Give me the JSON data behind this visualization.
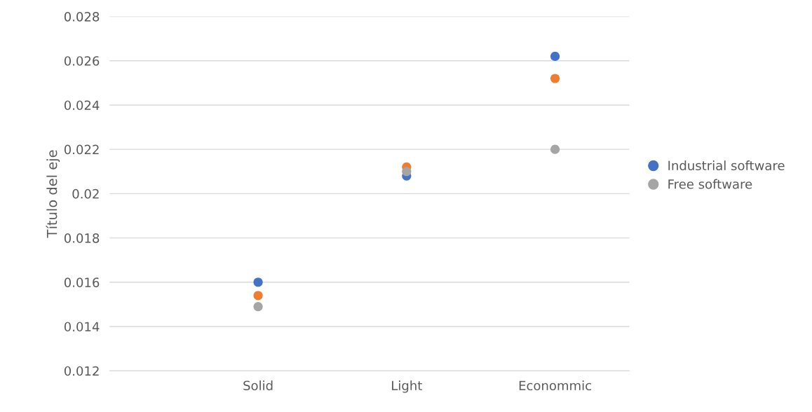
{
  "chart_data": {
    "type": "scatter",
    "ylabel": "Título del eje",
    "categories": [
      "Solid",
      "Light",
      "Econommic"
    ],
    "series": [
      {
        "name": "Industrial software",
        "color": "#4472c4",
        "values": [
          0.016,
          0.0208,
          0.0262
        ]
      },
      {
        "color": "#ed7d31",
        "values": [
          0.0154,
          0.0212,
          0.0252
        ]
      },
      {
        "name": "Free software",
        "color": "#a5a5a5",
        "values": [
          0.0149,
          0.021,
          0.022
        ]
      }
    ],
    "ylim": [
      0.012,
      0.028
    ],
    "yticks": [
      0.012,
      0.014,
      0.016,
      0.018,
      0.02,
      0.022,
      0.024,
      0.026,
      0.028
    ],
    "grid": "y",
    "legend": "right",
    "marker": "circle"
  }
}
